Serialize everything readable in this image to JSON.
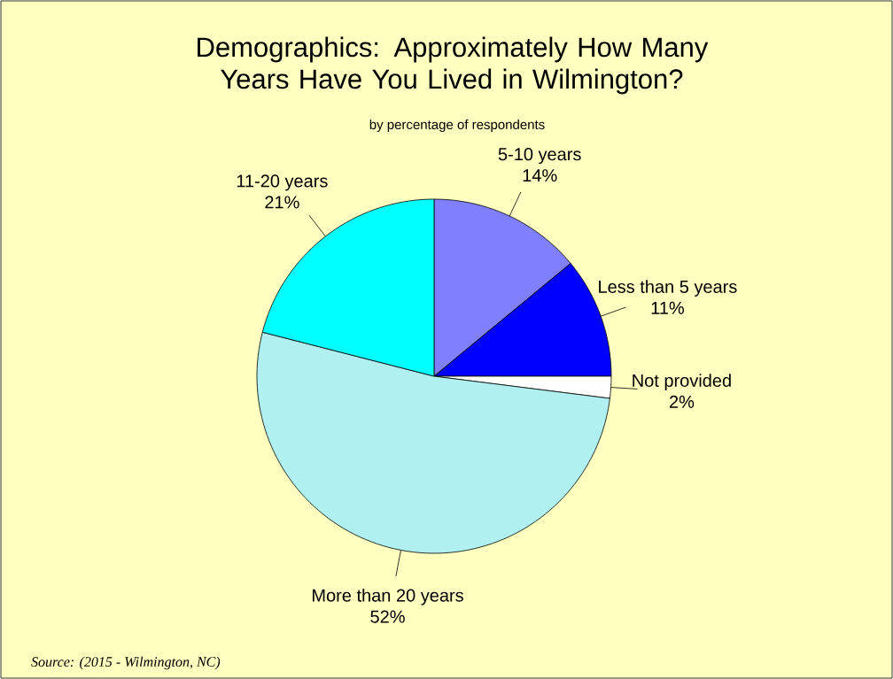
{
  "chart_data": {
    "type": "pie",
    "title": "Demographics: Approximately How Many Years Have You Lived in Wilmington?",
    "subtitle": "by percentage of respondents",
    "categories": [
      "5-10 years",
      "Less than 5 years",
      "Not provided",
      "More than 20 years",
      "11-20 years"
    ],
    "values": [
      14,
      11,
      2,
      52,
      21
    ],
    "value_labels": [
      "14%",
      "11%",
      "2%",
      "52%",
      "21%"
    ],
    "colors": [
      "#8080ff",
      "#0000ff",
      "#ffffff",
      "#b0f0f0",
      "#00ffff"
    ],
    "annotations": [
      "Source: (2015 - Wilmington, NC)"
    ]
  }
}
